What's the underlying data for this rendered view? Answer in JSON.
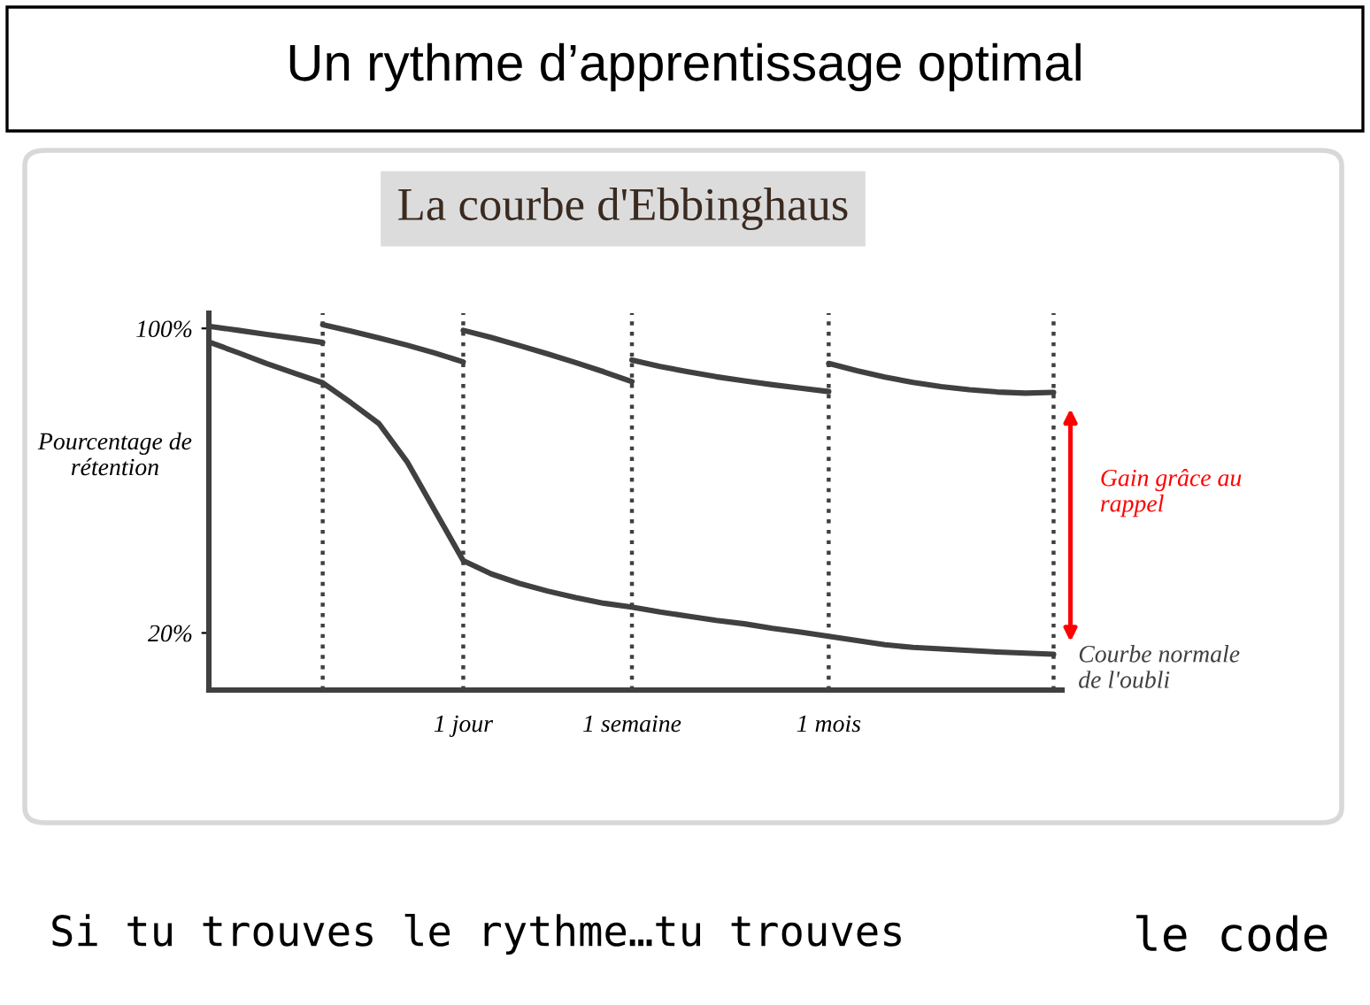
{
  "chart_data": {
    "type": "line",
    "title": "Un rythme d’apprentissage optimal",
    "subtitle": "La courbe d'Ebbinghaus",
    "ylabel": "Pourcentage de rétention",
    "categories": [
      null,
      null,
      null,
      null,
      null,
      null,
      null,
      null,
      null,
      "1 jour",
      null,
      null,
      null,
      null,
      null,
      "1 semaine",
      null,
      null,
      null,
      null,
      null,
      null,
      "1 mois",
      null,
      null,
      null,
      null,
      null,
      null,
      null,
      null
    ],
    "ylim": [
      5,
      104
    ],
    "yticks": [
      {
        "value": 100,
        "label": "100%"
      },
      {
        "value": 20,
        "label": "20%"
      }
    ],
    "grid": "x",
    "legend": false,
    "marker": "none",
    "line_style": "solid",
    "series": [
      {
        "color": "#404040",
        "values": [
          100.5,
          99.5,
          98.4,
          97.4,
          96.3,
          null,
          null,
          null,
          null,
          null,
          null,
          null,
          null,
          null,
          null,
          null,
          null,
          null,
          null,
          null,
          null,
          null,
          null,
          null,
          null,
          null,
          null,
          null,
          null,
          null,
          null
        ]
      },
      {
        "color": "#404040",
        "values": [
          null,
          null,
          null,
          null,
          101,
          99.3,
          97.5,
          95.6,
          93.5,
          91.2,
          null,
          null,
          null,
          null,
          null,
          null,
          null,
          null,
          null,
          null,
          null,
          null,
          null,
          null,
          null,
          null,
          null,
          null,
          null,
          null,
          null
        ]
      },
      {
        "color": "#404040",
        "values": [
          null,
          null,
          null,
          null,
          null,
          null,
          null,
          null,
          null,
          99.5,
          97.6,
          95.5,
          93.3,
          91,
          88.6,
          86,
          null,
          null,
          null,
          null,
          null,
          null,
          null,
          null,
          null,
          null,
          null,
          null,
          null,
          null,
          null
        ]
      },
      {
        "color": "#404040",
        "values": [
          null,
          null,
          null,
          null,
          null,
          null,
          null,
          null,
          null,
          null,
          null,
          null,
          null,
          null,
          null,
          91.7,
          90,
          88.6,
          87.3,
          86.2,
          85.2,
          84.3,
          83.4,
          null,
          null,
          null,
          null,
          null,
          null,
          null,
          null
        ]
      },
      {
        "color": "#404040",
        "values": [
          null,
          null,
          null,
          null,
          null,
          null,
          null,
          null,
          null,
          null,
          null,
          null,
          null,
          null,
          null,
          null,
          null,
          null,
          null,
          null,
          null,
          null,
          90.8,
          88.9,
          87.2,
          85.8,
          84.7,
          83.9,
          83.3,
          83,
          83.2
        ]
      },
      {
        "name": "Courbe normale de l'oubli",
        "color": "#404040",
        "values": [
          96.3,
          93.6,
          90.8,
          88.2,
          85.7,
          80.5,
          75,
          65,
          52,
          39,
          35.5,
          33,
          31,
          29.3,
          27.8,
          26.8,
          25.5,
          24.4,
          23.3,
          22.4,
          21.2,
          20.2,
          19.1,
          18,
          16.9,
          16.2,
          15.8,
          15.4,
          15,
          14.7,
          14.4
        ]
      }
    ],
    "annotations": [
      "Gain grâce au rappel",
      "Si tu trouves le rythme…tu trouves",
      "le code"
    ]
  }
}
